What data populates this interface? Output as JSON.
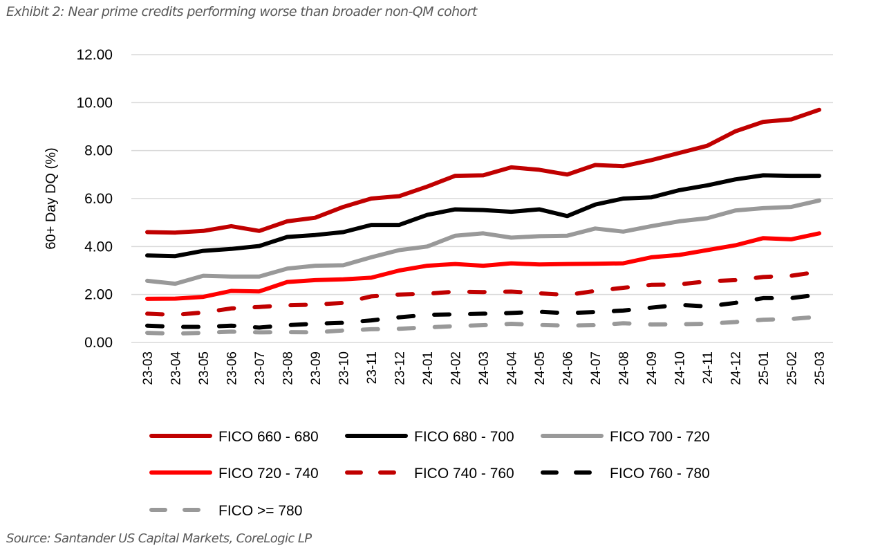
{
  "title": "Exhibit 2: Near prime credits performing worse than broader non-QM cohort",
  "source": "Source: Santander US Capital Markets, CoreLogic LP",
  "chart_data": {
    "type": "line",
    "title": "Exhibit 2: Near prime credits performing worse than broader non-QM cohort",
    "xlabel": "",
    "ylabel": "60+ Day DQ (%)",
    "ylim": [
      0,
      12
    ],
    "yticks": [
      "0.00",
      "2.00",
      "4.00",
      "6.00",
      "8.00",
      "10.00",
      "12.00"
    ],
    "ytick_values": [
      0,
      2,
      4,
      6,
      8,
      10,
      12
    ],
    "grid": true,
    "legend_position": "bottom",
    "x": [
      "23-03",
      "23-04",
      "23-05",
      "23-06",
      "23-07",
      "23-08",
      "23-09",
      "23-10",
      "23-11",
      "23-12",
      "24-01",
      "24-02",
      "24-03",
      "24-04",
      "24-05",
      "24-06",
      "24-07",
      "24-08",
      "24-09",
      "24-10",
      "24-11",
      "24-12",
      "25-01",
      "25-02",
      "25-03"
    ],
    "series": [
      {
        "name": "FICO 660 - 680",
        "color": "#C00000",
        "dashed": false,
        "values": [
          4.6,
          4.58,
          4.65,
          4.85,
          4.65,
          5.05,
          5.2,
          5.65,
          6.0,
          6.1,
          6.5,
          6.95,
          6.97,
          7.3,
          7.2,
          7.0,
          7.4,
          7.35,
          7.6,
          7.9,
          8.2,
          8.8,
          9.2,
          9.3,
          9.7
        ]
      },
      {
        "name": "FICO 680 - 700",
        "color": "#000000",
        "dashed": false,
        "values": [
          3.63,
          3.6,
          3.82,
          3.9,
          4.02,
          4.4,
          4.48,
          4.6,
          4.9,
          4.9,
          5.32,
          5.55,
          5.52,
          5.45,
          5.55,
          5.27,
          5.75,
          6.0,
          6.05,
          6.35,
          6.55,
          6.8,
          6.97,
          6.95,
          6.95
        ]
      },
      {
        "name": "FICO 700 - 720",
        "color": "#999999",
        "dashed": false,
        "values": [
          2.57,
          2.45,
          2.78,
          2.75,
          2.75,
          3.08,
          3.2,
          3.22,
          3.55,
          3.85,
          4.0,
          4.45,
          4.55,
          4.37,
          4.43,
          4.45,
          4.75,
          4.62,
          4.85,
          5.05,
          5.18,
          5.5,
          5.6,
          5.65,
          5.92
        ]
      },
      {
        "name": "FICO 720 - 740",
        "color": "#FF0000",
        "dashed": false,
        "values": [
          1.82,
          1.83,
          1.9,
          2.15,
          2.13,
          2.52,
          2.6,
          2.63,
          2.7,
          3.0,
          3.2,
          3.27,
          3.2,
          3.3,
          3.25,
          3.27,
          3.28,
          3.3,
          3.55,
          3.65,
          3.85,
          4.05,
          4.35,
          4.3,
          4.55
        ]
      },
      {
        "name": "FICO 740 - 760",
        "color": "#C00000",
        "dashed": true,
        "values": [
          1.2,
          1.15,
          1.25,
          1.42,
          1.48,
          1.55,
          1.58,
          1.65,
          1.92,
          2.0,
          2.03,
          2.12,
          2.1,
          2.12,
          2.05,
          1.98,
          2.15,
          2.28,
          2.4,
          2.42,
          2.55,
          2.6,
          2.73,
          2.78,
          2.95
        ]
      },
      {
        "name": "FICO 760 - 780",
        "color": "#000000",
        "dashed": true,
        "values": [
          0.7,
          0.65,
          0.65,
          0.7,
          0.62,
          0.72,
          0.78,
          0.82,
          0.92,
          1.05,
          1.15,
          1.17,
          1.2,
          1.23,
          1.28,
          1.22,
          1.27,
          1.33,
          1.45,
          1.57,
          1.5,
          1.65,
          1.85,
          1.85,
          2.0
        ]
      },
      {
        "name": "FICO >= 780",
        "color": "#999999",
        "dashed": true,
        "values": [
          0.4,
          0.37,
          0.4,
          0.45,
          0.42,
          0.43,
          0.42,
          0.5,
          0.55,
          0.57,
          0.63,
          0.68,
          0.72,
          0.78,
          0.73,
          0.7,
          0.72,
          0.8,
          0.75,
          0.76,
          0.78,
          0.85,
          0.95,
          0.98,
          1.07
        ]
      }
    ]
  }
}
